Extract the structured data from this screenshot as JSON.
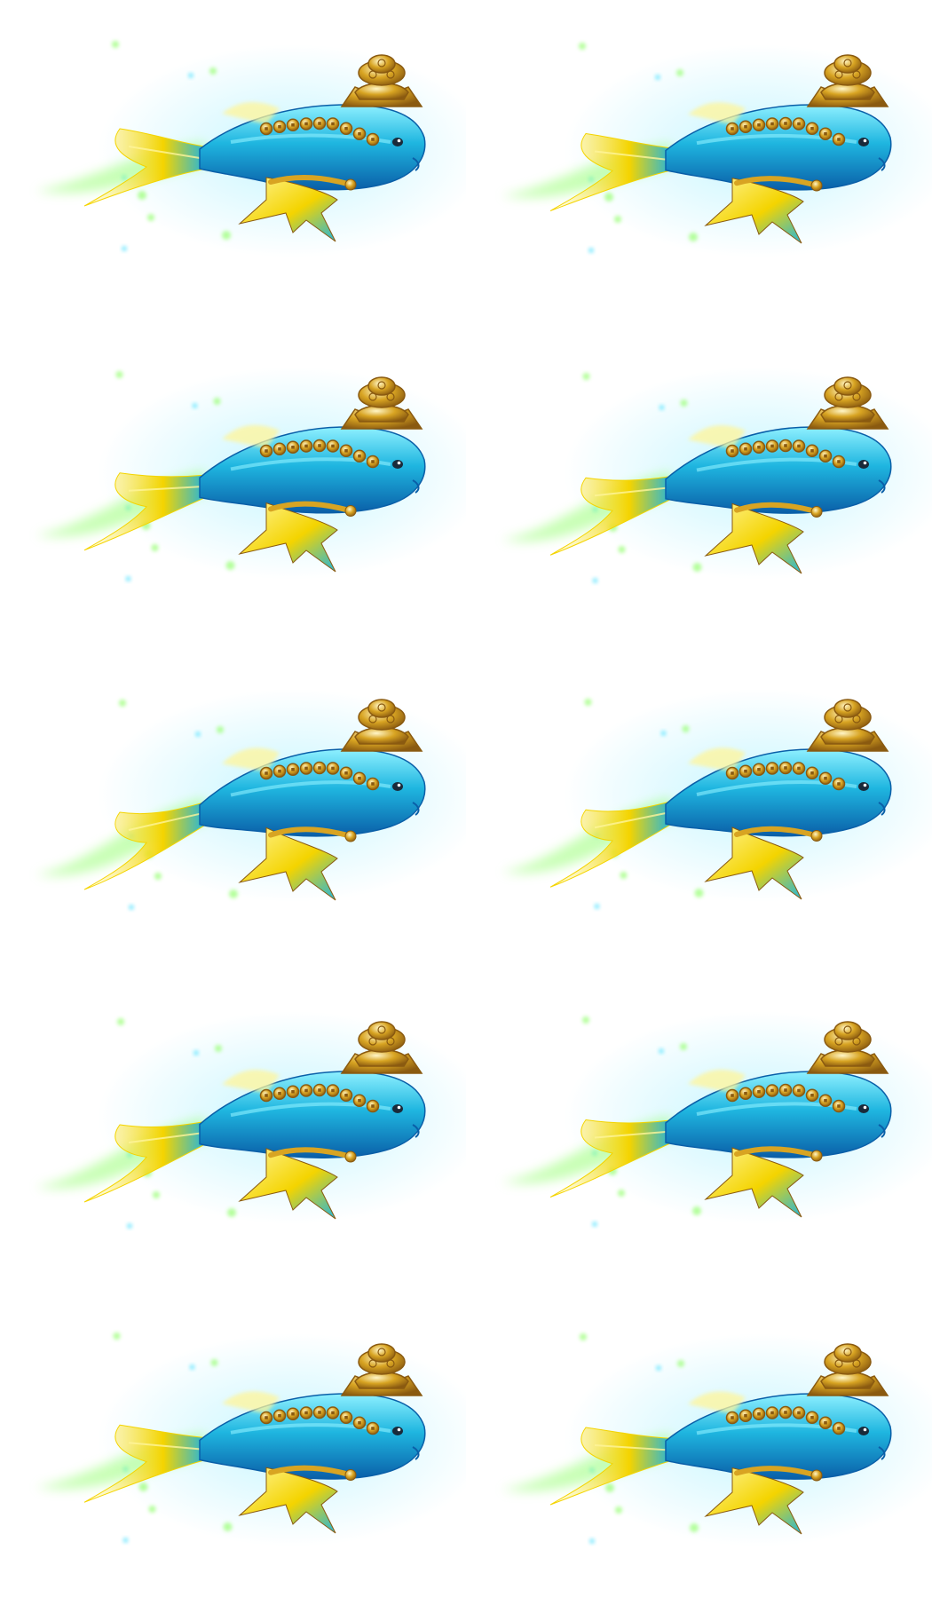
{
  "sprite_sheet": {
    "subject": "golden-lotus-carp-icon",
    "layout": {
      "columns": 2,
      "rows": 5
    },
    "frames": [
      {
        "index": 1,
        "pose": 0.0
      },
      {
        "index": 2,
        "pose": 0.1
      },
      {
        "index": 3,
        "pose": 0.45
      },
      {
        "index": 4,
        "pose": 0.55
      },
      {
        "index": 5,
        "pose": 0.8
      },
      {
        "index": 6,
        "pose": 0.75
      },
      {
        "index": 7,
        "pose": 0.6
      },
      {
        "index": 8,
        "pose": 0.5
      },
      {
        "index": 9,
        "pose": 0.15
      },
      {
        "index": 10,
        "pose": 0.2
      }
    ],
    "colors": {
      "body": "#1fb6e0",
      "body_dark": "#0a5fa8",
      "body_light": "#8ef0ff",
      "fin_gold": "#f4d400",
      "fin_light": "#fff59a",
      "gold": "#d8a422",
      "gold_dark": "#8a5a10",
      "glow": "#9cff7a",
      "glow_blue": "#5fe4ff",
      "background": "#ffffff"
    }
  }
}
